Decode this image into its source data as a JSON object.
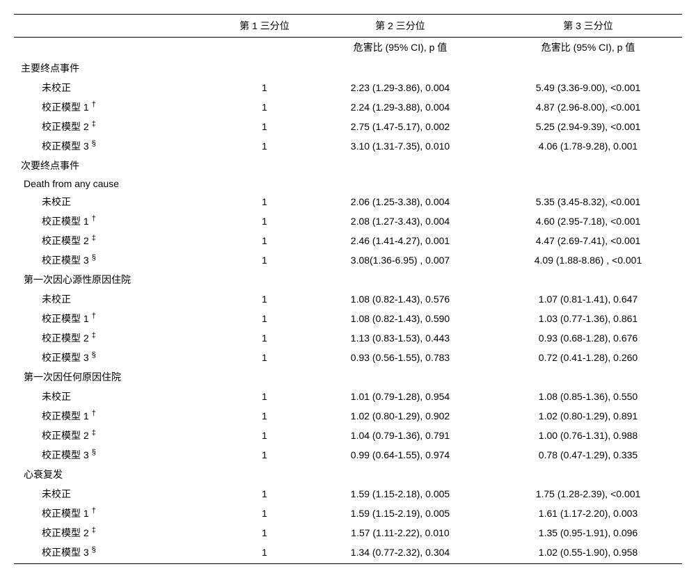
{
  "columns": {
    "blank": "",
    "t1": "第 1 三分位",
    "t2": "第 2 三分位",
    "t3": "第 3 三分位",
    "subt2": "危害比 (95% CI), p 值",
    "subt3": "危害比 (95% CI), p 值"
  },
  "row_labels": {
    "uncorrected": "未校正",
    "model1": "校正模型 1",
    "model2": "校正模型 2",
    "model3": "校正模型 3",
    "dag": "†",
    "ddag": "‡",
    "sect": "§"
  },
  "sections": {
    "primary": {
      "title": "主要终点事件",
      "rows": {
        "unc": {
          "c1": "1",
          "c2": "2.23 (1.29-3.86), 0.004",
          "c3": "5.49 (3.36-9.00), <0.001"
        },
        "m1": {
          "c1": "1",
          "c2": "2.24 (1.29-3.88), 0.004",
          "c3": "4.87 (2.96-8.00), <0.001"
        },
        "m2": {
          "c1": "1",
          "c2": "2.75 (1.47-5.17), 0.002",
          "c3": "5.25 (2.94-9.39), <0.001"
        },
        "m3": {
          "c1": "1",
          "c2": "3.10 (1.31-7.35), 0.010",
          "c3": "4.06 (1.78-9.28), 0.001"
        }
      }
    },
    "secondary": {
      "title": "次要终点事件",
      "death": {
        "title": "Death from any cause",
        "rows": {
          "unc": {
            "c1": "1",
            "c2": "2.06 (1.25-3.38), 0.004",
            "c3": "5.35 (3.45-8.32), <0.001"
          },
          "m1": {
            "c1": "1",
            "c2": "2.08 (1.27-3.43), 0.004",
            "c3": "4.60 (2.95-7.18), <0.001"
          },
          "m2": {
            "c1": "1",
            "c2": "2.46 (1.41-4.27), 0.001",
            "c3": "4.47 (2.69-7.41), <0.001"
          },
          "m3": {
            "c1": "1",
            "c2": "3.08(1.36-6.95) , 0.007",
            "c3": "4.09 (1.88-8.86) , <0.001"
          }
        }
      },
      "cardiac": {
        "title": "第一次因心源性原因住院",
        "rows": {
          "unc": {
            "c1": "1",
            "c2": "1.08 (0.82-1.43), 0.576",
            "c3": "1.07 (0.81-1.41), 0.647"
          },
          "m1": {
            "c1": "1",
            "c2": "1.08 (0.82-1.43), 0.590",
            "c3": "1.03 (0.77-1.36), 0.861"
          },
          "m2": {
            "c1": "1",
            "c2": "1.13 (0.83-1.53), 0.443",
            "c3": "0.93 (0.68-1.28), 0.676"
          },
          "m3": {
            "c1": "1",
            "c2": "0.93 (0.56-1.55), 0.783",
            "c3": "0.72 (0.41-1.28), 0.260"
          }
        }
      },
      "anyhosp": {
        "title": "第一次因任何原因住院",
        "rows": {
          "unc": {
            "c1": "1",
            "c2": "1.01 (0.79-1.28), 0.954",
            "c3": "1.08 (0.85-1.36), 0.550"
          },
          "m1": {
            "c1": "1",
            "c2": "1.02 (0.80-1.29), 0.902",
            "c3": "1.02 (0.80-1.29), 0.891"
          },
          "m2": {
            "c1": "1",
            "c2": "1.04 (0.79-1.36), 0.791",
            "c3": "1.00 (0.76-1.31), 0.988"
          },
          "m3": {
            "c1": "1",
            "c2": "0.99 (0.64-1.55), 0.974",
            "c3": "0.78 (0.47-1.29), 0.335"
          }
        }
      },
      "hf": {
        "title": "心衰复发",
        "rows": {
          "unc": {
            "c1": "1",
            "c2": "1.59 (1.15-2.18), 0.005",
            "c3": "1.75 (1.28-2.39), <0.001"
          },
          "m1": {
            "c1": "1",
            "c2": "1.59 (1.15-2.19), 0.005",
            "c3": "1.61 (1.17-2.20), 0.003"
          },
          "m2": {
            "c1": "1",
            "c2": "1.57 (1.11-2.22), 0.010",
            "c3": "1.35 (0.95-1.91), 0.096"
          },
          "m3": {
            "c1": "1",
            "c2": "1.34 (0.77-2.32), 0.304",
            "c3": "1.02 (0.55-1.90), 0.958"
          }
        }
      }
    }
  }
}
